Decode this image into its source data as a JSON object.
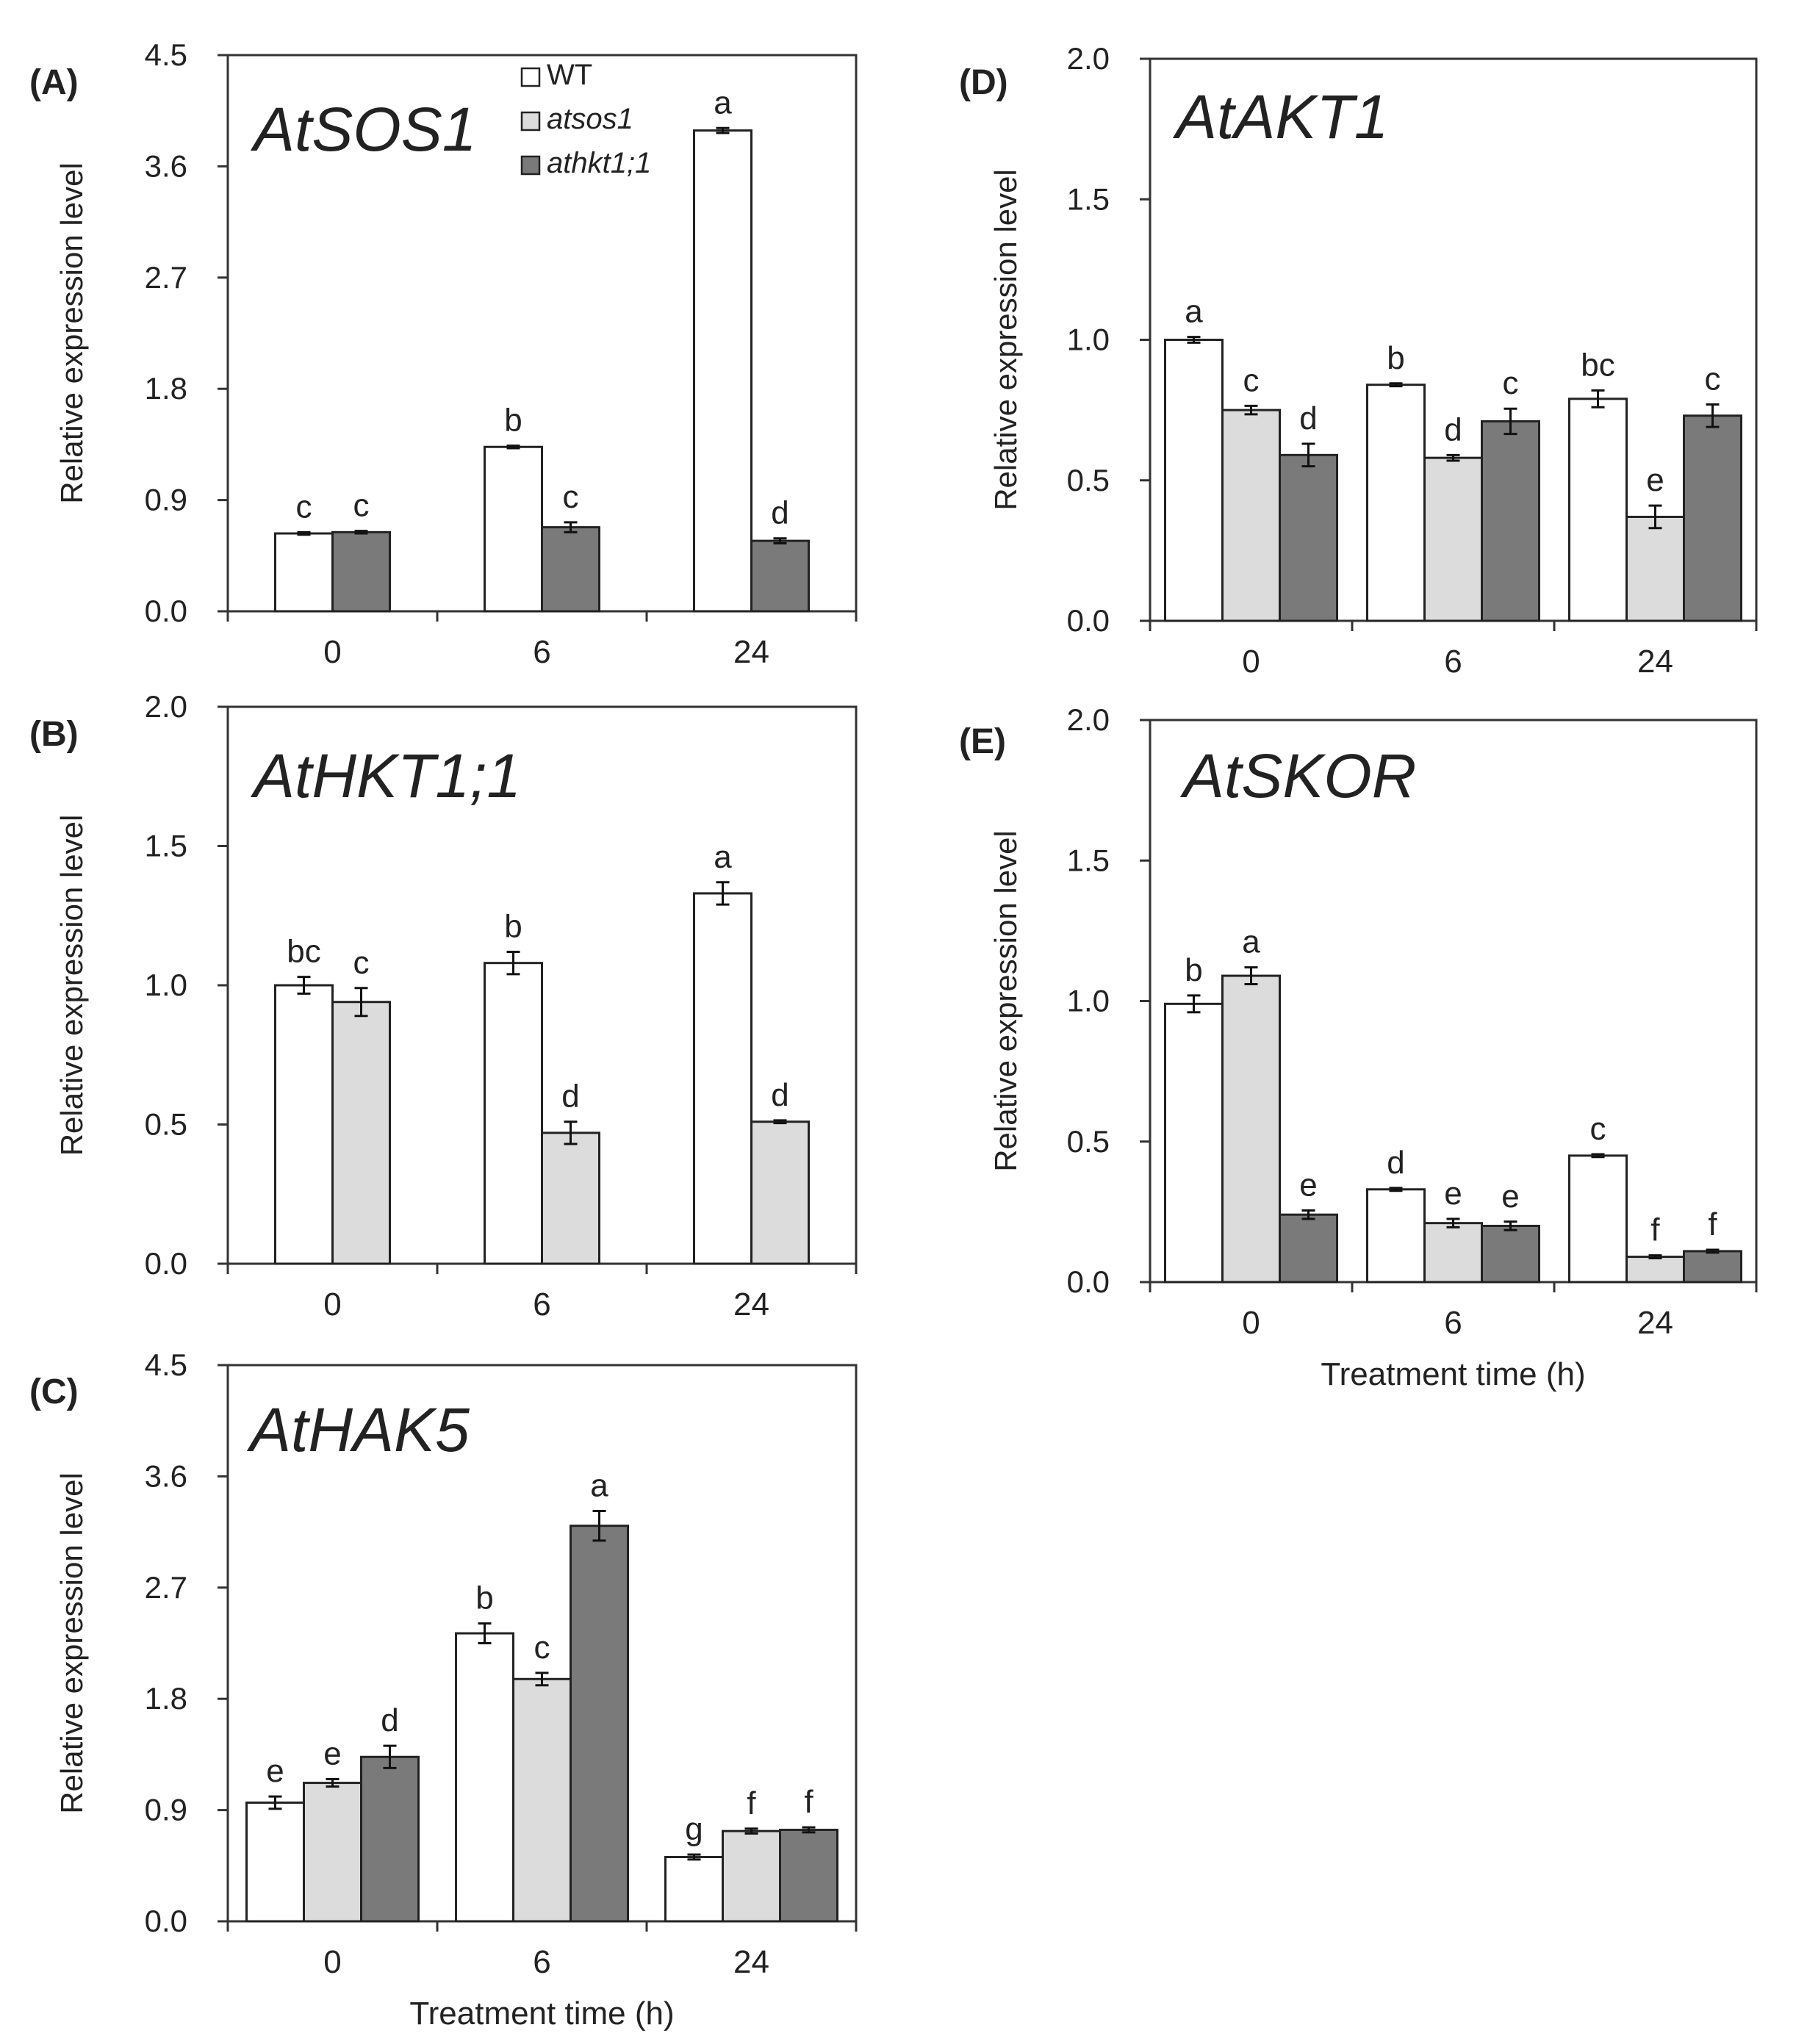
{
  "legend": {
    "series": [
      {
        "name": "WT",
        "italic": false
      },
      {
        "name": "atsos1",
        "italic": true
      },
      {
        "name": "athkt1;1",
        "italic": true
      }
    ]
  },
  "colors": {
    "WT": "#ffffff",
    "atsos1": "#dcdcdc",
    "athkt1;1": "#7a7a7a",
    "axis": "#333333"
  },
  "chart_data": [
    {
      "panel": "(A)",
      "type": "bar",
      "title": "AtSOS1",
      "ylabel": "Relative expression level",
      "xlabel": "",
      "categories": [
        "0",
        "6",
        "24"
      ],
      "yticks": [
        "0.0",
        "0.9",
        "1.8",
        "2.7",
        "3.6",
        "4.5"
      ],
      "ylim": [
        0,
        4.5
      ],
      "series": [
        {
          "name": "WT",
          "values": [
            0.63,
            1.33,
            3.89
          ],
          "errors": [
            0.01,
            0.01,
            0.02
          ],
          "letters": [
            "c",
            "b",
            "a"
          ]
        },
        {
          "name": "athkt1;1",
          "values": [
            0.64,
            0.68,
            0.57
          ],
          "errors": [
            0.01,
            0.04,
            0.02
          ],
          "letters": [
            "c",
            "c",
            "d"
          ]
        }
      ]
    },
    {
      "panel": "(B)",
      "type": "bar",
      "title": "AtHKT1;1",
      "ylabel": "Relative expression level",
      "xlabel": "",
      "categories": [
        "0",
        "6",
        "24"
      ],
      "yticks": [
        "0.0",
        "0.5",
        "1.0",
        "1.5",
        "2.0"
      ],
      "ylim": [
        0,
        2.0
      ],
      "series": [
        {
          "name": "WT",
          "values": [
            1.0,
            1.08,
            1.33
          ],
          "errors": [
            0.03,
            0.04,
            0.04
          ],
          "letters": [
            "bc",
            "b",
            "a"
          ]
        },
        {
          "name": "atsos1",
          "values": [
            0.94,
            0.47,
            0.51
          ],
          "errors": [
            0.05,
            0.04,
            0.005
          ],
          "letters": [
            "c",
            "d",
            "d"
          ]
        }
      ]
    },
    {
      "panel": "(C)",
      "type": "bar",
      "title": "AtHAK5",
      "ylabel": "Relative expression level",
      "xlabel": "Treatment  time (h)",
      "categories": [
        "0",
        "6",
        "24"
      ],
      "yticks": [
        "0.0",
        "0.9",
        "1.8",
        "2.7",
        "3.6",
        "4.5"
      ],
      "ylim": [
        0,
        4.5
      ],
      "series": [
        {
          "name": "WT",
          "values": [
            0.96,
            2.33,
            0.52
          ],
          "errors": [
            0.05,
            0.08,
            0.02
          ],
          "letters": [
            "e",
            "b",
            "g"
          ]
        },
        {
          "name": "atsos1",
          "values": [
            1.12,
            1.96,
            0.73
          ],
          "errors": [
            0.03,
            0.05,
            0.02
          ],
          "letters": [
            "e",
            "c",
            "f"
          ]
        },
        {
          "name": "athkt1;1",
          "values": [
            1.33,
            3.2,
            0.74
          ],
          "errors": [
            0.09,
            0.12,
            0.02
          ],
          "letters": [
            "d",
            "a",
            "f"
          ]
        }
      ]
    },
    {
      "panel": "(D)",
      "type": "bar",
      "title": "AtAKT1",
      "ylabel": "Relative expression level",
      "xlabel": "",
      "categories": [
        "0",
        "6",
        "24"
      ],
      "yticks": [
        "0.0",
        "0.5",
        "1.0",
        "1.5",
        "2.0"
      ],
      "ylim": [
        0,
        2.0
      ],
      "series": [
        {
          "name": "WT",
          "values": [
            1.0,
            0.84,
            0.79
          ],
          "errors": [
            0.01,
            0.005,
            0.03
          ],
          "letters": [
            "a",
            "b",
            "bc"
          ]
        },
        {
          "name": "atsos1",
          "values": [
            0.75,
            0.58,
            0.37
          ],
          "errors": [
            0.015,
            0.01,
            0.04
          ],
          "letters": [
            "c",
            "d",
            "e"
          ]
        },
        {
          "name": "athkt1;1",
          "values": [
            0.59,
            0.71,
            0.73
          ],
          "errors": [
            0.04,
            0.045,
            0.04
          ],
          "letters": [
            "d",
            "c",
            "c"
          ]
        }
      ]
    },
    {
      "panel": "(E)",
      "type": "bar",
      "title": "AtSKOR",
      "ylabel": "Relative expression level",
      "xlabel": "Treatment  time (h)",
      "categories": [
        "0",
        "6",
        "24"
      ],
      "yticks": [
        "0.0",
        "0.5",
        "1.0",
        "1.5",
        "2.0"
      ],
      "ylim": [
        0,
        2.0
      ],
      "series": [
        {
          "name": "WT",
          "values": [
            0.99,
            0.33,
            0.45
          ],
          "errors": [
            0.03,
            0.005,
            0.005
          ],
          "letters": [
            "b",
            "d",
            "c"
          ]
        },
        {
          "name": "atsos1",
          "values": [
            1.09,
            0.21,
            0.09
          ],
          "errors": [
            0.03,
            0.015,
            0.005
          ],
          "letters": [
            "a",
            "e",
            "f"
          ]
        },
        {
          "name": "athkt1;1",
          "values": [
            0.24,
            0.2,
            0.11
          ],
          "errors": [
            0.015,
            0.015,
            0.005
          ],
          "letters": [
            "e",
            "e",
            "f"
          ]
        }
      ]
    }
  ]
}
